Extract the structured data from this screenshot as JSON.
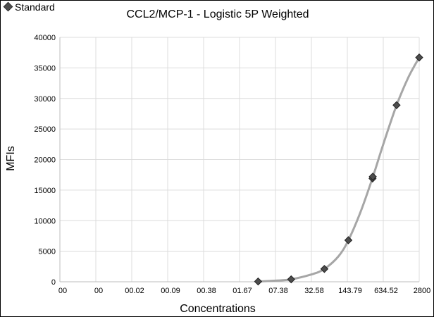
{
  "chart_data": {
    "type": "scatter",
    "title": "CCL2/MCP-1 - Logistic 5P Weighted",
    "xlabel": "Concentrations",
    "ylabel": "MFIs",
    "legend": {
      "entries": [
        "Standard"
      ],
      "placement": "top-left"
    },
    "grid": true,
    "xscale": "log",
    "x_tick_labels": [
      "00",
      "00",
      "00.02",
      "00.09",
      "00.38",
      "01.67",
      "07.38",
      "32.58",
      "143.79",
      "634.52",
      "2800"
    ],
    "xlim_ticks": [
      0,
      11
    ],
    "ylim": [
      0,
      40000
    ],
    "y_ticks": [
      0,
      5000,
      10000,
      15000,
      20000,
      25000,
      30000,
      35000,
      40000
    ],
    "colors": {
      "marker": "#4d4d4d",
      "curve": "#a6a6a6",
      "grid": "#dcdcdc"
    },
    "series": [
      {
        "name": "Standard",
        "marker": "diamond",
        "points": [
          {
            "x": 3.6,
            "y": 50
          },
          {
            "x": 14.1,
            "y": 400
          },
          {
            "x": 55.6,
            "y": 2100
          },
          {
            "x": 150,
            "y": 6800
          },
          {
            "x": 407,
            "y": 16900
          },
          {
            "x": 411,
            "y": 17200
          },
          {
            "x": 1100,
            "y": 28900
          },
          {
            "x": 2800,
            "y": 36700
          }
        ]
      }
    ],
    "fit_curve": [
      {
        "x": 3.6,
        "y": 50
      },
      {
        "x": 7.4,
        "y": 180
      },
      {
        "x": 14.1,
        "y": 400
      },
      {
        "x": 32.6,
        "y": 1200
      },
      {
        "x": 55.6,
        "y": 2100
      },
      {
        "x": 100,
        "y": 4200
      },
      {
        "x": 150,
        "y": 6800
      },
      {
        "x": 250,
        "y": 11500
      },
      {
        "x": 407,
        "y": 17000
      },
      {
        "x": 634.5,
        "y": 22500
      },
      {
        "x": 1100,
        "y": 28900
      },
      {
        "x": 1800,
        "y": 33500
      },
      {
        "x": 2800,
        "y": 36700
      }
    ]
  }
}
